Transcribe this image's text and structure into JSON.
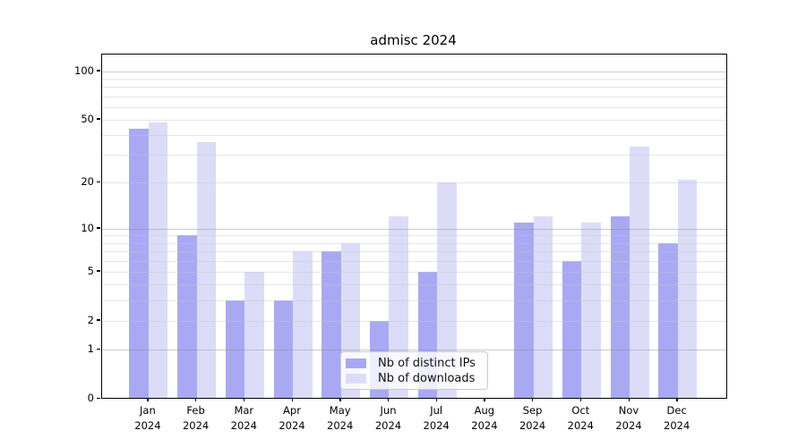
{
  "chart_data": {
    "type": "bar",
    "title": "admisc 2024",
    "categories": [
      "Jan 2024",
      "Feb 2024",
      "Mar 2024",
      "Apr 2024",
      "May 2024",
      "Jun 2024",
      "Jul 2024",
      "Aug 2024",
      "Sep 2024",
      "Oct 2024",
      "Nov 2024",
      "Dec 2024"
    ],
    "series": [
      {
        "name": "Nb of distinct IPs",
        "color": "#a9a9f3",
        "values": [
          44,
          9,
          3,
          3,
          7,
          2,
          5,
          0,
          11,
          6,
          12,
          8
        ]
      },
      {
        "name": "Nb of downloads",
        "color": "#dcdcf9",
        "values": [
          48,
          36,
          5,
          7,
          8,
          12,
          20,
          0,
          12,
          11,
          34,
          21
        ]
      }
    ],
    "y_axis": {
      "scale": "log1p",
      "ticks": [
        0,
        1,
        2,
        5,
        10,
        20,
        50,
        100
      ],
      "major_gridlines": [
        1,
        10,
        100
      ],
      "minor_gridlines": [
        2,
        3,
        4,
        5,
        6,
        7,
        8,
        9,
        20,
        30,
        40,
        50,
        60,
        70,
        80,
        90
      ],
      "ylim": [
        0,
        130
      ]
    },
    "legend": {
      "position": "lower center"
    }
  }
}
